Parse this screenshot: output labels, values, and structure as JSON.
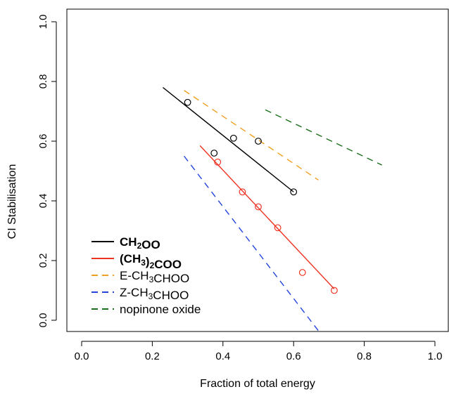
{
  "chart_data": {
    "type": "scatter",
    "xlabel": "Fraction of total energy",
    "ylabel": "CI Stabilisation",
    "xlim": [
      0.0,
      1.02
    ],
    "ylim": [
      0.0,
      1.0
    ],
    "x_ticks": [
      0.0,
      0.2,
      0.4,
      0.6,
      0.8,
      1.0
    ],
    "x_tick_labels": [
      "0.0",
      "0.2",
      "0.4",
      "0.6",
      "0.8",
      "1.0"
    ],
    "y_ticks": [
      0.0,
      0.2,
      0.4,
      0.6,
      0.8,
      1.0
    ],
    "y_tick_labels": [
      "0.0",
      "0.2",
      "0.4",
      "0.6",
      "0.8",
      "1.0"
    ],
    "grid": false,
    "legend_position": "bottom-left",
    "series": [
      {
        "name": "CH2OO",
        "label_parts": [
          [
            "CH",
            ""
          ],
          [
            "2",
            "sub"
          ],
          [
            "OO",
            ""
          ]
        ],
        "bold": true,
        "color": "#000000",
        "dash": "solid",
        "points": [
          [
            0.3,
            0.73
          ],
          [
            0.375,
            0.56
          ],
          [
            0.43,
            0.61
          ],
          [
            0.5,
            0.6
          ],
          [
            0.6,
            0.43
          ]
        ],
        "line": [
          [
            0.23,
            0.78
          ],
          [
            0.6,
            0.43
          ]
        ]
      },
      {
        "name": "(CH3)2COO",
        "label_parts": [
          [
            "(CH",
            ""
          ],
          [
            "3",
            "sub"
          ],
          [
            ")",
            ""
          ],
          [
            "2",
            "sub"
          ],
          [
            "COO",
            ""
          ]
        ],
        "bold": true,
        "color": "#ee3322",
        "dash": "solid",
        "points": [
          [
            0.385,
            0.53
          ],
          [
            0.455,
            0.43
          ],
          [
            0.5,
            0.38
          ],
          [
            0.555,
            0.31
          ],
          [
            0.625,
            0.16
          ],
          [
            0.715,
            0.1
          ]
        ],
        "line": [
          [
            0.335,
            0.585
          ],
          [
            0.715,
            0.105
          ]
        ]
      },
      {
        "name": "E-CH3CHOO",
        "label_parts": [
          [
            "E-CH",
            ""
          ],
          [
            "3",
            "sub"
          ],
          [
            "CHOO",
            ""
          ]
        ],
        "bold": false,
        "color": "#f0a020",
        "dash": "dashed",
        "points": [],
        "line": [
          [
            0.29,
            0.77
          ],
          [
            0.67,
            0.47
          ]
        ]
      },
      {
        "name": "Z-CH3CHOO",
        "label_parts": [
          [
            "Z-CH",
            ""
          ],
          [
            "3",
            "sub"
          ],
          [
            "CHOO",
            ""
          ]
        ],
        "bold": false,
        "color": "#2244dd",
        "dash": "dashed",
        "points": [],
        "line": [
          [
            0.29,
            0.55
          ],
          [
            0.67,
            -0.035
          ]
        ]
      },
      {
        "name": "nopinone oxide",
        "label_parts": [
          [
            "nopinone oxide",
            ""
          ]
        ],
        "bold": false,
        "color": "#1a6e1a",
        "dash": "dashed",
        "points": [],
        "line": [
          [
            0.52,
            0.705
          ],
          [
            0.85,
            0.52
          ]
        ]
      }
    ]
  }
}
